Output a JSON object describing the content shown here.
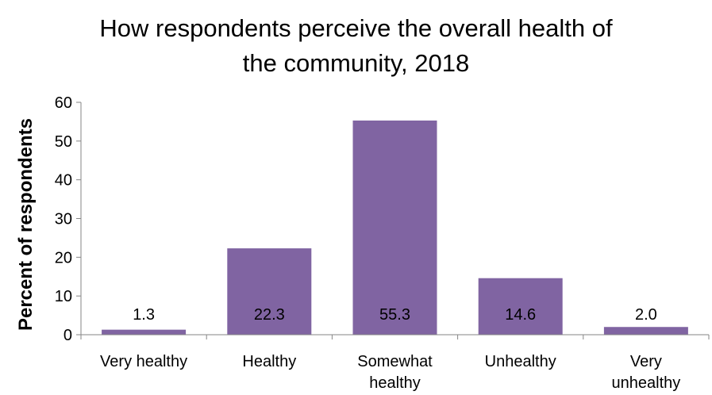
{
  "chart_data": {
    "type": "bar",
    "title_lines": [
      "How respondents perceive the overall health of",
      "the community, 2018"
    ],
    "xlabel": "",
    "ylabel": "Percent of respondents",
    "categories": [
      [
        "Very healthy"
      ],
      [
        "Healthy"
      ],
      [
        "Somewhat",
        "healthy"
      ],
      [
        "Unhealthy"
      ],
      [
        "Very",
        "unhealthy"
      ]
    ],
    "values": [
      1.3,
      22.3,
      55.3,
      14.6,
      2.0
    ],
    "data_labels": [
      "1.3",
      "22.3",
      "55.3",
      "14.6",
      "2.0"
    ],
    "ylim": [
      0,
      60
    ],
    "yticks": [
      0,
      10,
      20,
      30,
      40,
      50,
      60
    ],
    "grid": false,
    "legend": "none",
    "colors": {
      "bar": "#8064a2",
      "axis": "#868686"
    }
  }
}
